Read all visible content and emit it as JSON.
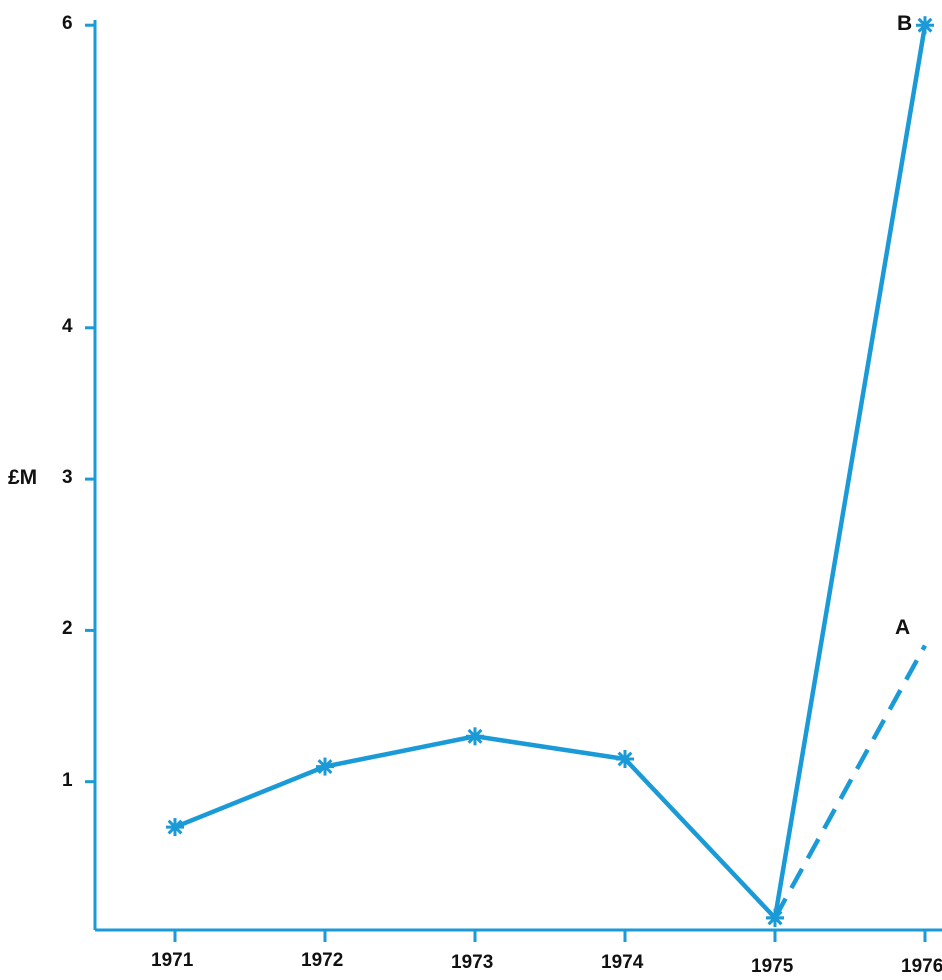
{
  "chart_data": {
    "type": "line",
    "ylabel": "£M",
    "xlabel": "",
    "categories": [
      "1971",
      "1972",
      "1973",
      "1974",
      "1975",
      "1976"
    ],
    "ylim": [
      0,
      6
    ],
    "y_ticks": [
      "1",
      "2",
      "3",
      "4",
      "6"
    ],
    "grid": false,
    "series": [
      {
        "x": [
          "1971",
          "1972",
          "1973",
          "1974",
          "1975"
        ],
        "values": [
          0.7,
          1.1,
          1.3,
          1.15,
          0.1
        ],
        "style": "solid"
      },
      {
        "name": "B",
        "x": [
          "1975",
          "1976"
        ],
        "values": [
          0.1,
          6.0
        ],
        "style": "solid"
      },
      {
        "name": "A",
        "x": [
          "1975",
          "1976"
        ],
        "values": [
          0.1,
          1.9
        ],
        "style": "dashed"
      }
    ]
  },
  "colors": {
    "line": "#1a9ad6",
    "axis": "#1a9ad6",
    "text": "#111111"
  }
}
